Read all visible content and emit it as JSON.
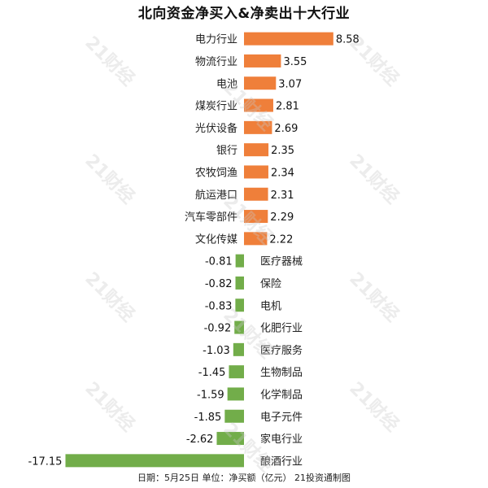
{
  "title": "北向资金净买入&净卖出十大行业",
  "footer": "日期：5月25日 单位：净买额（亿元） 21投资通制图",
  "watermark": "21财经",
  "colors": {
    "positive": "#ef7f3a",
    "negative": "#72ad4a"
  },
  "chart_data": {
    "type": "bar",
    "orientation": "horizontal",
    "title": "北向资金净买入&净卖出十大行业",
    "categories": [
      "电力行业",
      "物流行业",
      "电池",
      "煤炭行业",
      "光伏设备",
      "银行",
      "农牧饲渔",
      "航运港口",
      "汽车零部件",
      "文化传媒",
      "医疗器械",
      "保险",
      "电机",
      "化肥行业",
      "医疗服务",
      "生物制品",
      "化学制品",
      "电子元件",
      "家电行业",
      "酿酒行业"
    ],
    "values": [
      8.58,
      3.55,
      3.07,
      2.81,
      2.69,
      2.35,
      2.34,
      2.31,
      2.29,
      2.22,
      -0.81,
      -0.82,
      -0.83,
      -0.92,
      -1.03,
      -1.45,
      -1.59,
      -1.85,
      -2.62,
      -17.15
    ],
    "value_labels": [
      "8.58",
      "3.55",
      "3.07",
      "2.81",
      "2.69",
      "2.35",
      "2.34",
      "2.31",
      "2.29",
      "2.22",
      "-0.81",
      "-0.82",
      "-0.83",
      "-0.92",
      "-1.03",
      "-1.45",
      "-1.59",
      "-1.85",
      "-2.62",
      "-17.15"
    ],
    "unit": "亿元",
    "grid": false,
    "legend": "none"
  }
}
